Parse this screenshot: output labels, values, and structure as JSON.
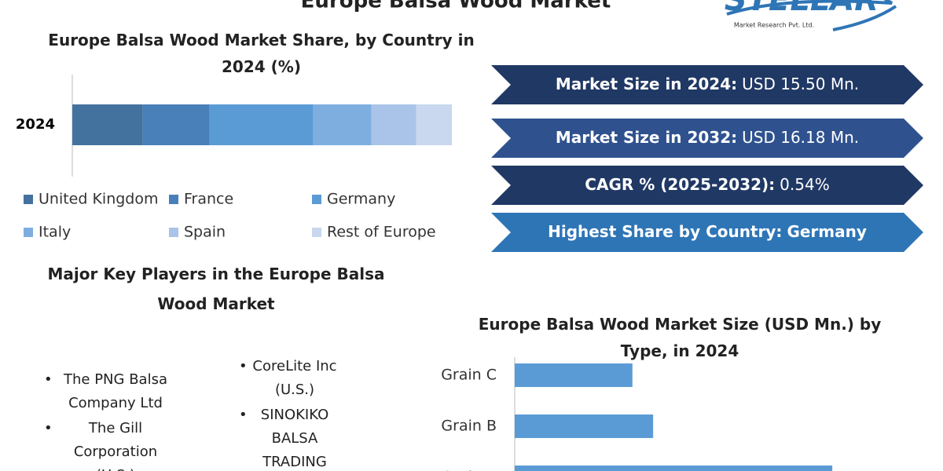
{
  "header": {
    "title": "Europe Balsa Wood Market",
    "logo": "STELLAR",
    "logo_subtitle": "Market Research Pvt. Ltd."
  },
  "highlights": [
    {
      "label": "Market Size in 2024:",
      "value": "USD 15.50 Mn.",
      "color": "#203864"
    },
    {
      "label": "Market Size in 2032:",
      "value": "USD 16.18 Mn.",
      "color": "#2f528f"
    },
    {
      "label": "CAGR % (2025-2032):",
      "value": "0.54%",
      "color": "#203864"
    },
    {
      "label": "Highest Share by Country:",
      "value": "Germany",
      "color": "#2e75b6"
    }
  ],
  "key_players": {
    "title": "Major Key Players in the Europe Balsa Wood Market",
    "items": [
      "The PNG Balsa Company Ltd",
      "The Gill Corporation (U.S.)",
      "CoreLite Inc (U.S.)",
      "SINOKIKO BALSA TRADING"
    ]
  },
  "chart_data": [
    {
      "type": "stacked_barh",
      "title": "Europe Balsa Wood Market Share, by Country in 2024 (%)",
      "categories": [
        "2024"
      ],
      "xlim": [
        0,
        100
      ],
      "series": [
        {
          "name": "United Kingdom",
          "color": "#44729f",
          "values": [
            18.6
          ]
        },
        {
          "name": "France",
          "color": "#4a80b9",
          "values": [
            17.6
          ]
        },
        {
          "name": "Germany",
          "color": "#5b9bd5",
          "values": [
            27.3
          ]
        },
        {
          "name": "Italy",
          "color": "#7eaee0",
          "values": [
            15.3
          ]
        },
        {
          "name": "Spain",
          "color": "#a9c4e8",
          "values": [
            11.8
          ]
        },
        {
          "name": "Rest of Europe",
          "color": "#c9d7ef",
          "values": [
            9.4
          ]
        }
      ]
    },
    {
      "type": "barh",
      "title": "Europe Balsa Wood Market Size (USD Mn.) by Type, in 2024",
      "categories": [
        "Grain C",
        "Grain B",
        "Grain A"
      ],
      "values": [
        3.18,
        3.74,
        8.58
      ],
      "color": "#5b9bd5",
      "xlim": [
        0,
        10
      ]
    }
  ]
}
